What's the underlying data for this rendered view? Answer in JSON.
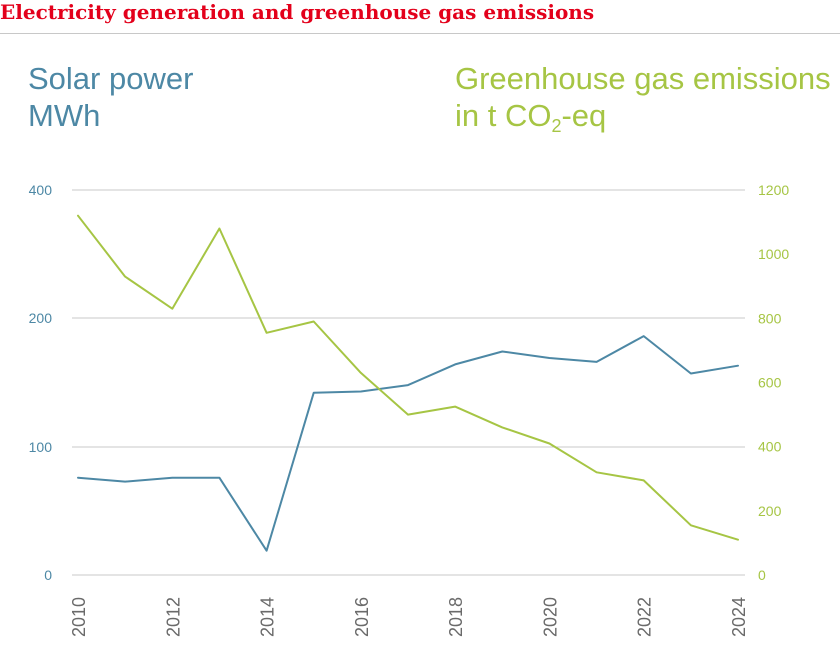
{
  "header": {
    "title": "Electricity generation and greenhouse gas emissions"
  },
  "axes": {
    "left_title_line1": "Solar power",
    "left_title_line2": "MWh",
    "right_title_line1": "Greenhouse gas emissions",
    "right_title_line2_pre": "in t CO",
    "right_title_line2_sub": "2",
    "right_title_line2_post": "-eq"
  },
  "colors": {
    "title": "#e3001b",
    "solar": "#4d88a5",
    "emissions": "#a6c544",
    "grid": "#c8c8c8"
  },
  "chart_data": {
    "type": "line",
    "x": [
      2010,
      2011,
      2012,
      2013,
      2014,
      2015,
      2016,
      2017,
      2018,
      2019,
      2020,
      2021,
      2022,
      2023,
      2024
    ],
    "x_tick_labels": [
      "2010",
      "2012",
      "2014",
      "2016",
      "2018",
      "2020",
      "2022",
      "2024"
    ],
    "series": [
      {
        "name": "Solar power",
        "axis": "left",
        "color": "#4d88a5",
        "values": [
          76,
          73,
          76,
          76,
          19,
          142,
          143,
          148,
          164,
          174,
          169,
          166,
          186,
          157,
          163
        ]
      },
      {
        "name": "Greenhouse gas emissions",
        "axis": "right",
        "color": "#a6c544",
        "values": [
          1120,
          930,
          830,
          1080,
          755,
          790,
          630,
          500,
          525,
          460,
          410,
          320,
          295,
          155,
          110
        ]
      }
    ],
    "left_axis": {
      "ticks": [
        0,
        100,
        200,
        400
      ],
      "labels": [
        "0",
        "100",
        "200",
        "400"
      ]
    },
    "right_axis": {
      "ylim": [
        0,
        1200
      ],
      "ticks": [
        0,
        200,
        400,
        600,
        800,
        1000,
        1200
      ],
      "labels": [
        "0",
        "200",
        "400",
        "600",
        "800",
        "1000",
        "1200"
      ]
    },
    "grid": true
  }
}
